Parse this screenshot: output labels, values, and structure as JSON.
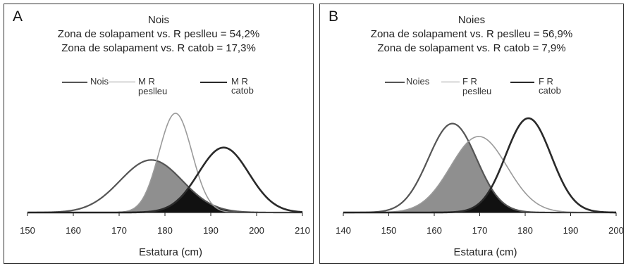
{
  "chart_data": [
    {
      "type": "area",
      "panel_label": "A",
      "title": "Nois",
      "subtitle_lines": [
        "Zona de solapament vs. R peslleu = 54,2%",
        "Zona de solapament vs. R catob = 17,3%"
      ],
      "xlabel": "Estatura (cm)",
      "ylabel": "",
      "xlim": [
        150,
        210
      ],
      "x_ticks": [
        "150",
        "160",
        "170",
        "180",
        "190",
        "200",
        "210"
      ],
      "grid": false,
      "legend_position": "top",
      "series": [
        {
          "name": "Nois",
          "distribution": "normal",
          "mean": 177.0,
          "sd": 6.8,
          "color": "#555555",
          "stroke_width": 2.2
        },
        {
          "name": "M R peslleu",
          "distribution": "normal",
          "mean": 182.3,
          "sd": 3.6,
          "color": "#9a9a9a",
          "stroke_width": 1.6
        },
        {
          "name": "M R catob",
          "distribution": "normal",
          "mean": 192.8,
          "sd": 5.5,
          "color": "#2a2a2a",
          "stroke_width": 2.6
        }
      ],
      "overlap_fills": [
        {
          "between": [
            "Nois",
            "M R peslleu"
          ],
          "color": "#8f8f8f",
          "overlap_percent": 54.2
        },
        {
          "between": [
            "Nois",
            "M R catob"
          ],
          "color": "#111111",
          "overlap_percent": 17.3
        }
      ]
    },
    {
      "type": "area",
      "panel_label": "B",
      "title": "Noies",
      "subtitle_lines": [
        "Zona de solapament vs. R peslleu = 56,9%",
        "Zona de solapament vs. R catob = 7,9%"
      ],
      "xlabel": "Estatura (cm)",
      "ylabel": "",
      "xlim": [
        140,
        200
      ],
      "x_ticks": [
        "140",
        "150",
        "160",
        "170",
        "180",
        "190",
        "200"
      ],
      "grid": false,
      "legend_position": "top",
      "series": [
        {
          "name": "Noies",
          "distribution": "normal",
          "mean": 164.0,
          "sd": 5.3,
          "color": "#555555",
          "stroke_width": 2.2
        },
        {
          "name": "F R peslleu",
          "distribution": "normal",
          "mean": 169.8,
          "sd": 6.2,
          "color": "#9a9a9a",
          "stroke_width": 1.6
        },
        {
          "name": "F R catob",
          "distribution": "normal",
          "mean": 180.7,
          "sd": 5.0,
          "color": "#2a2a2a",
          "stroke_width": 2.6
        }
      ],
      "overlap_fills": [
        {
          "between": [
            "Noies",
            "F R peslleu"
          ],
          "color": "#8f8f8f",
          "overlap_percent": 56.9
        },
        {
          "between": [
            "Noies",
            "F R catob"
          ],
          "color": "#111111",
          "overlap_percent": 7.9
        }
      ]
    }
  ],
  "legend_labels": {
    "A": [
      "Nois",
      "M R\npeslleu",
      "M R catob"
    ],
    "B": [
      "Noies",
      "F R\npeslleu",
      "F R catob"
    ]
  }
}
